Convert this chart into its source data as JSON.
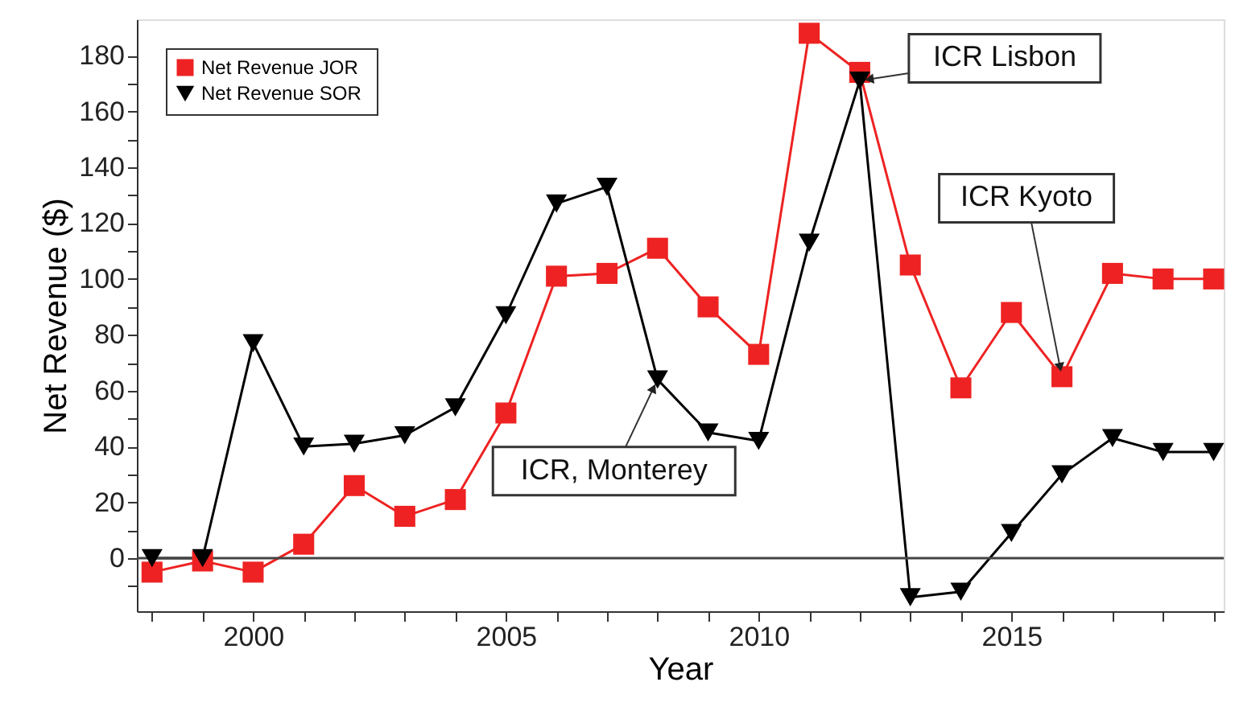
{
  "chart_data": {
    "type": "line",
    "xlabel": "Year",
    "ylabel": "Net Revenue ($)",
    "x": [
      1998,
      1999,
      2000,
      2001,
      2002,
      2003,
      2004,
      2005,
      2006,
      2007,
      2008,
      2009,
      2010,
      2011,
      2012,
      2013,
      2014,
      2015,
      2016,
      2017,
      2018,
      2019
    ],
    "series": [
      {
        "name": "Net Revenue JOR",
        "color": "#ee2222",
        "marker": "square",
        "values": [
          -5,
          -1,
          -5,
          5,
          26,
          15,
          21,
          52,
          101,
          102,
          111,
          90,
          73,
          188,
          174,
          105,
          61,
          88,
          65,
          102,
          100,
          100
        ]
      },
      {
        "name": "Net  Revenue SOR",
        "color": "#000000",
        "marker": "triangle-down",
        "values": [
          0,
          0,
          77,
          40,
          41,
          44,
          54,
          87,
          127,
          133,
          64,
          45,
          42,
          113,
          171,
          -14,
          -12,
          9,
          30,
          43,
          38,
          38
        ]
      }
    ],
    "xlim": [
      1997.7,
      2019.2
    ],
    "xticks": [
      {
        "value": 1998,
        "label": null
      },
      {
        "value": 1999,
        "label": null
      },
      2000,
      {
        "value": 2001,
        "label": null
      },
      {
        "value": 2002,
        "label": null
      },
      {
        "value": 2003,
        "label": null
      },
      {
        "value": 2004,
        "label": null
      },
      2005,
      {
        "value": 2006,
        "label": null
      },
      {
        "value": 2007,
        "label": null
      },
      {
        "value": 2008,
        "label": null
      },
      {
        "value": 2009,
        "label": null
      },
      2010,
      {
        "value": 2011,
        "label": null
      },
      {
        "value": 2012,
        "label": null
      },
      {
        "value": 2013,
        "label": null
      },
      {
        "value": 2014,
        "label": null
      },
      2015,
      {
        "value": 2016,
        "label": null
      },
      {
        "value": 2017,
        "label": null
      },
      {
        "value": 2018,
        "label": null
      },
      {
        "value": 2019,
        "label": null
      }
    ],
    "ylim": [
      -19,
      193
    ],
    "yticks": [
      {
        "value": -10,
        "label": null
      },
      0,
      {
        "value": 10,
        "label": null
      },
      20,
      {
        "value": 30,
        "label": null
      },
      40,
      {
        "value": 50,
        "label": null
      },
      60,
      {
        "value": 70,
        "label": null
      },
      80,
      {
        "value": 90,
        "label": null
      },
      100,
      {
        "value": 110,
        "label": null
      },
      120,
      {
        "value": 130,
        "label": null
      },
      140,
      {
        "value": 150,
        "label": null
      },
      160,
      {
        "value": 170,
        "label": null
      },
      180
    ],
    "ref_lines": [
      {
        "axis": "y",
        "value": 0,
        "color": "#444444"
      }
    ],
    "annotations": [
      {
        "text": "ICR Lisbon",
        "x": 2012,
        "y": 171
      },
      {
        "text": "ICR Kyoto",
        "x": 2016,
        "y": 65
      },
      {
        "text": "ICR, Monterey",
        "x": 2008,
        "y": 64
      }
    ],
    "grid": false,
    "legend": "top left"
  }
}
